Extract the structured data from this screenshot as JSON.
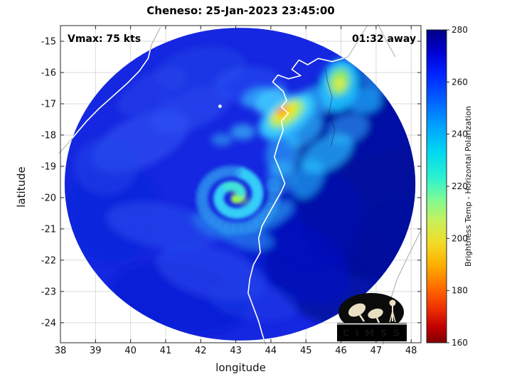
{
  "chart_data": {
    "type": "heatmap",
    "title": "Cheneso: 25-Jan-2023 23:45:00",
    "storm_name": "Cheneso",
    "timestamp": "25-Jan-2023 23:45:00",
    "annotations": {
      "vmax": "Vmax: 75 kts",
      "eta": "01:32 away"
    },
    "xlabel": "longitude",
    "ylabel": "latitude",
    "xlim": [
      38,
      48.28
    ],
    "ylim": [
      -24.64,
      -14.5
    ],
    "xticks": [
      38,
      39,
      40,
      41,
      42,
      43,
      44,
      45,
      46,
      47,
      48
    ],
    "yticks": [
      -15,
      -16,
      -17,
      -18,
      -19,
      -20,
      -21,
      -22,
      -23,
      -24
    ],
    "grid": true,
    "grid_color": "#d9d9d9",
    "frame_color": "#262626",
    "colorbar": {
      "label": "Brightness Temp - Horizontal Polarization",
      "ticks": [
        280,
        260,
        240,
        220,
        200,
        180,
        160
      ],
      "range": [
        160,
        280
      ],
      "orientation": "vertical",
      "colormap": "jet-reversed",
      "stops": [
        {
          "o": 0,
          "c": "#000084"
        },
        {
          "o": 0.07,
          "c": "#0000d2"
        },
        {
          "o": 0.14,
          "c": "#0022ff"
        },
        {
          "o": 0.23,
          "c": "#0064ff"
        },
        {
          "o": 0.31,
          "c": "#00a4ff"
        },
        {
          "o": 0.39,
          "c": "#00d8f0"
        },
        {
          "o": 0.47,
          "c": "#2af0d2"
        },
        {
          "o": 0.54,
          "c": "#7cfa96"
        },
        {
          "o": 0.61,
          "c": "#c8f05a"
        },
        {
          "o": 0.68,
          "c": "#f0dc28"
        },
        {
          "o": 0.75,
          "c": "#ffb000"
        },
        {
          "o": 0.82,
          "c": "#ff7000"
        },
        {
          "o": 0.89,
          "c": "#f03000"
        },
        {
          "o": 0.95,
          "c": "#c00000"
        },
        {
          "o": 1,
          "c": "#800000"
        }
      ]
    },
    "swath": {
      "center_lon": 43.12,
      "center_lat": -19.57,
      "radius_deg": 5.0,
      "base_color": "#1527e0",
      "base_temp_k": 252
    },
    "key_features": [
      {
        "name": "eye-spiral-center",
        "lon": 42.95,
        "lat": -19.95,
        "approx_temp_k": 230
      },
      {
        "name": "convective-burst",
        "lon": 44.35,
        "lat": -17.3,
        "approx_temp_k": 192
      },
      {
        "name": "cold-cloud-band-ne",
        "lon": 45.95,
        "lat": -16.4,
        "approx_temp_k": 214
      },
      {
        "name": "warm-clear-region-east",
        "lon": 46.9,
        "lat": -19.3,
        "approx_temp_k": 270
      }
    ],
    "blobs": [
      {
        "lon": 46.9,
        "lat": -19.3,
        "rx": 2.3,
        "ry": 3.3,
        "rot": 0,
        "color": "#000a96",
        "op": 0.9,
        "temp_k": 270
      },
      {
        "lon": 45.9,
        "lat": -22.4,
        "rx": 2.2,
        "ry": 1.7,
        "rot": 25,
        "color": "#000a96",
        "op": 0.75,
        "temp_k": 268
      },
      {
        "lon": 45.2,
        "lat": -20.7,
        "rx": 1.5,
        "ry": 1.7,
        "rot": 0,
        "color": "#0011b2",
        "op": 0.6,
        "temp_k": 264
      },
      {
        "lon": 46.6,
        "lat": -17.2,
        "rx": 1.7,
        "ry": 1.5,
        "rot": 0,
        "color": "#0010aa",
        "op": 0.6,
        "temp_k": 264
      },
      {
        "lon": 47.6,
        "lat": -21.5,
        "rx": 1.2,
        "ry": 1.5,
        "rot": 0,
        "color": "#0009a0",
        "op": 0.7,
        "temp_k": 270
      },
      {
        "lon": 44.7,
        "lat": -22.0,
        "rx": 1.7,
        "ry": 1.2,
        "rot": 30,
        "color": "#0616c8",
        "op": 0.5,
        "temp_k": 260
      },
      {
        "lon": 41.4,
        "lat": -23.2,
        "rx": 2.0,
        "ry": 1.1,
        "rot": 10,
        "color": "#0a1ad0",
        "op": 0.5,
        "temp_k": 258
      },
      {
        "lon": 39.5,
        "lat": -20.4,
        "rx": 1.3,
        "ry": 1.7,
        "rot": 0,
        "color": "#0d1fd8",
        "op": 0.45,
        "temp_k": 256
      },
      {
        "lon": 40.3,
        "lat": -18.2,
        "rx": 1.5,
        "ry": 0.8,
        "rot": -25,
        "color": "#2e52f2",
        "op": 0.65,
        "temp_k": 248
      },
      {
        "lon": 41.7,
        "lat": -17.2,
        "rx": 1.2,
        "ry": 0.6,
        "rot": -20,
        "color": "#2e52f2",
        "op": 0.55,
        "temp_k": 248
      },
      {
        "lon": 40.9,
        "lat": -20.9,
        "rx": 1.6,
        "ry": 0.7,
        "rot": 10,
        "color": "#2950f0",
        "op": 0.55,
        "temp_k": 249
      },
      {
        "lon": 42.3,
        "lat": -22.4,
        "rx": 1.6,
        "ry": 0.8,
        "rot": 15,
        "color": "#2950f0",
        "op": 0.5,
        "temp_k": 249
      },
      {
        "lon": 39.3,
        "lat": -19.0,
        "rx": 0.9,
        "ry": 0.9,
        "rot": 0,
        "color": "#2347ea",
        "op": 0.5,
        "temp_k": 250
      },
      {
        "lon": 42.0,
        "lat": -15.9,
        "rx": 1.3,
        "ry": 0.7,
        "rot": -10,
        "color": "#2347ea",
        "op": 0.5,
        "temp_k": 250
      },
      {
        "lon": 43.4,
        "lat": -16.4,
        "rx": 1.0,
        "ry": 0.6,
        "rot": 0,
        "color": "#2c55f5",
        "op": 0.5,
        "temp_k": 248
      },
      {
        "lon": 40.6,
        "lat": -16.6,
        "rx": 1.1,
        "ry": 0.55,
        "rot": -30,
        "color": "#2748ec",
        "op": 0.5,
        "temp_k": 250
      },
      {
        "lon": 43.5,
        "lat": -23.3,
        "rx": 1.3,
        "ry": 0.6,
        "rot": 10,
        "color": "#2040e8",
        "op": 0.45,
        "temp_k": 251
      },
      {
        "lon": 45.95,
        "lat": -16.4,
        "rx": 0.55,
        "ry": 0.85,
        "rot": 15,
        "color": "#18c8ff",
        "op": 0.9,
        "temp_k": 232
      },
      {
        "lon": 45.95,
        "lat": -16.3,
        "rx": 0.3,
        "ry": 0.45,
        "rot": 15,
        "color": "#8cf05a",
        "op": 0.9,
        "temp_k": 214
      },
      {
        "lon": 45.95,
        "lat": -16.35,
        "rx": 0.14,
        "ry": 0.2,
        "rot": 10,
        "color": "#f0e840",
        "op": 0.9,
        "temp_k": 200
      },
      {
        "lon": 46.65,
        "lat": -16.9,
        "rx": 0.5,
        "ry": 0.4,
        "rot": 0,
        "color": "#20b8ff",
        "op": 0.7,
        "temp_k": 236
      },
      {
        "lon": 47.05,
        "lat": -16.15,
        "rx": 0.45,
        "ry": 0.55,
        "rot": 0,
        "color": "#28a8f8",
        "op": 0.6,
        "temp_k": 238
      },
      {
        "lon": 45.3,
        "lat": -16.9,
        "rx": 0.5,
        "ry": 0.45,
        "rot": 0,
        "color": "#2fb9ff",
        "op": 0.7,
        "temp_k": 236
      },
      {
        "lon": 46.2,
        "lat": -17.8,
        "rx": 0.6,
        "ry": 0.45,
        "rot": -20,
        "color": "#2fa8f5",
        "op": 0.6,
        "temp_k": 239
      },
      {
        "lon": 45.6,
        "lat": -18.6,
        "rx": 0.8,
        "ry": 0.5,
        "rot": -30,
        "color": "#28c0ff",
        "op": 0.7,
        "temp_k": 234
      },
      {
        "lon": 45.05,
        "lat": -19.4,
        "rx": 0.6,
        "ry": 0.45,
        "rot": -60,
        "color": "#28c0ff",
        "op": 0.6,
        "temp_k": 236
      },
      {
        "lon": 44.45,
        "lat": -17.4,
        "rx": 0.9,
        "ry": 0.55,
        "rot": -35,
        "color": "#35d0ff",
        "op": 0.95,
        "temp_k": 230
      },
      {
        "lon": 44.45,
        "lat": -17.32,
        "rx": 0.58,
        "ry": 0.34,
        "rot": -35,
        "color": "#a0f060",
        "op": 0.95,
        "temp_k": 210
      },
      {
        "lon": 44.4,
        "lat": -17.28,
        "rx": 0.4,
        "ry": 0.2,
        "rot": -35,
        "color": "#ffe400",
        "op": 0.95,
        "temp_k": 198
      },
      {
        "lon": 44.32,
        "lat": -17.22,
        "rx": 0.2,
        "ry": 0.11,
        "rot": -35,
        "color": "#ff7800",
        "op": 0.95,
        "temp_k": 190
      },
      {
        "lon": 44.95,
        "lat": -17.85,
        "rx": 0.6,
        "ry": 0.4,
        "rot": -40,
        "color": "#30c0ff",
        "op": 0.7,
        "temp_k": 234
      },
      {
        "lon": 44.0,
        "lat": -16.9,
        "rx": 0.5,
        "ry": 0.35,
        "rot": -30,
        "color": "#48d8ff",
        "op": 0.8,
        "temp_k": 232
      },
      {
        "lon": 43.6,
        "lat": -16.8,
        "rx": 0.45,
        "ry": 0.3,
        "rot": -20,
        "color": "#38ccff",
        "op": 0.6,
        "temp_k": 236
      },
      {
        "lon": 43.2,
        "lat": -17.9,
        "rx": 0.35,
        "ry": 0.25,
        "rot": 0,
        "color": "#40d0f8",
        "op": 0.6,
        "temp_k": 236
      },
      {
        "lon": 42.6,
        "lat": -18.15,
        "rx": 0.3,
        "ry": 0.2,
        "rot": 0,
        "color": "#3cc8f4",
        "op": 0.5,
        "temp_k": 238
      },
      {
        "lon": 44.35,
        "lat": -18.6,
        "rx": 0.5,
        "ry": 0.7,
        "rot": 10,
        "color": "#2fc0f8",
        "op": 0.55,
        "temp_k": 236
      },
      {
        "lon": 44.3,
        "lat": -19.3,
        "rx": 0.4,
        "ry": 0.5,
        "rot": 0,
        "color": "#30c4f8",
        "op": 0.5,
        "temp_k": 236
      },
      {
        "lon": 44.0,
        "lat": -20.6,
        "rx": 0.7,
        "ry": 0.3,
        "rot": -30,
        "color": "#2fb0f4",
        "op": 0.6,
        "temp_k": 238
      },
      {
        "lon": 43.3,
        "lat": -21.25,
        "rx": 0.8,
        "ry": 0.35,
        "rot": 15,
        "color": "#2aa0f0",
        "op": 0.55,
        "temp_k": 240
      },
      {
        "lon": 42.3,
        "lat": -20.9,
        "rx": 0.6,
        "ry": 0.3,
        "rot": 30,
        "color": "#2aa0f0",
        "op": 0.45,
        "temp_k": 242
      },
      {
        "lon": 43.05,
        "lat": -19.8,
        "rx": 0.16,
        "ry": 0.11,
        "rot": 0,
        "color": "#c8f060",
        "op": 0.9,
        "temp_k": 208
      },
      {
        "lon": 43.28,
        "lat": -20.15,
        "rx": 0.13,
        "ry": 0.1,
        "rot": 0,
        "color": "#a8ec58",
        "op": 0.85,
        "temp_k": 212
      }
    ],
    "spiral": {
      "center_lon": 42.95,
      "center_lat": -19.95,
      "a0_deg": -70,
      "turns": 2.25,
      "r0": 0.1,
      "growth": 0.48,
      "pr0": 0.13,
      "prg": 0.04,
      "stops": [
        {
          "upto": 0.25,
          "color": "#9cf05c",
          "opacity": 0.95
        },
        {
          "upto": 0.6,
          "color": "#40e4d8",
          "opacity": 0.92
        },
        {
          "upto": 1.4,
          "color": "#34d0f8",
          "opacity": 0.88
        },
        {
          "upto": 9,
          "color": "#2f96ee",
          "opacity": 0.6
        }
      ]
    },
    "white_speck": {
      "lon": 42.55,
      "lat": -17.08
    },
    "coastlines": [
      {
        "name": "madagascar-west-coast",
        "type": "coast",
        "points": [
          [
            46.75,
            -14.5
          ],
          [
            46.45,
            -15.05
          ],
          [
            46.2,
            -15.5
          ],
          [
            45.75,
            -15.65
          ],
          [
            45.35,
            -15.55
          ],
          [
            45.05,
            -15.75
          ],
          [
            44.8,
            -15.6
          ],
          [
            44.6,
            -15.9
          ],
          [
            44.85,
            -16.1
          ],
          [
            44.5,
            -16.2
          ],
          [
            44.2,
            -16.08
          ],
          [
            44.05,
            -16.3
          ],
          [
            44.35,
            -16.6
          ],
          [
            44.45,
            -16.9
          ],
          [
            44.3,
            -17.1
          ],
          [
            44.5,
            -17.3
          ],
          [
            44.3,
            -17.55
          ],
          [
            44.35,
            -17.85
          ],
          [
            44.2,
            -18.3
          ],
          [
            44.1,
            -18.7
          ],
          [
            44.25,
            -19.1
          ],
          [
            44.4,
            -19.55
          ],
          [
            44.3,
            -19.8
          ],
          [
            44.15,
            -20.1
          ],
          [
            43.95,
            -20.5
          ],
          [
            43.75,
            -20.9
          ],
          [
            43.65,
            -21.3
          ],
          [
            43.7,
            -21.75
          ],
          [
            43.5,
            -22.15
          ],
          [
            43.4,
            -22.6
          ],
          [
            43.35,
            -23.05
          ],
          [
            43.5,
            -23.5
          ],
          [
            43.65,
            -23.95
          ],
          [
            43.75,
            -24.35
          ],
          [
            43.85,
            -24.7
          ]
        ]
      },
      {
        "name": "mozambique-coast",
        "type": "coast",
        "points": [
          [
            40.85,
            -14.55
          ],
          [
            40.6,
            -15.1
          ],
          [
            40.5,
            -15.55
          ],
          [
            40.25,
            -15.95
          ],
          [
            39.9,
            -16.35
          ],
          [
            39.5,
            -16.75
          ],
          [
            39.1,
            -17.15
          ],
          [
            38.75,
            -17.55
          ],
          [
            38.45,
            -17.95
          ],
          [
            38.15,
            -18.35
          ],
          [
            37.95,
            -18.6
          ]
        ]
      },
      {
        "name": "madagascar-northeast-coast",
        "type": "coast",
        "points": [
          [
            47.05,
            -14.45
          ],
          [
            47.3,
            -15.0
          ],
          [
            47.55,
            -15.5
          ]
        ]
      },
      {
        "name": "madagascar-southeast-coast",
        "type": "coast",
        "points": [
          [
            48.3,
            -21.0
          ],
          [
            47.9,
            -21.9
          ],
          [
            47.6,
            -22.6
          ],
          [
            47.4,
            -23.3
          ],
          [
            47.25,
            -23.95
          ],
          [
            47.2,
            -24.7
          ]
        ]
      },
      {
        "name": "betsiboka-river",
        "type": "river",
        "points": [
          [
            45.55,
            -15.85
          ],
          [
            45.62,
            -16.3
          ],
          [
            45.75,
            -16.8
          ],
          [
            45.65,
            -17.3
          ],
          [
            45.82,
            -17.8
          ],
          [
            45.72,
            -18.35
          ]
        ]
      }
    ]
  },
  "logo": {
    "text": "C I M S S"
  }
}
